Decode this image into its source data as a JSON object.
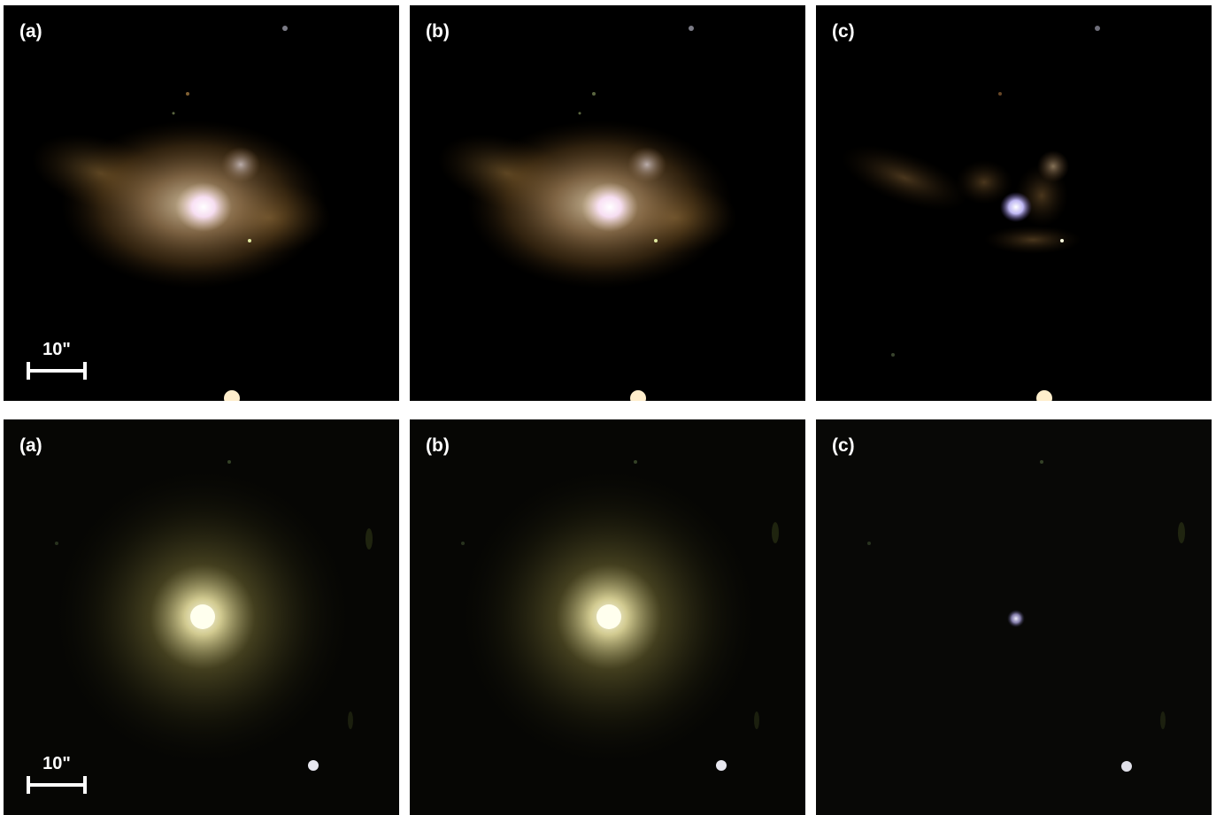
{
  "rows": [
    {
      "panels": [
        {
          "label": "(a)",
          "kind": "galaxy-spiral",
          "show_scalebar": true
        },
        {
          "label": "(b)",
          "kind": "galaxy-spiral",
          "show_scalebar": false
        },
        {
          "label": "(c)",
          "kind": "residual-spiral",
          "show_scalebar": false
        }
      ]
    },
    {
      "panels": [
        {
          "label": "(a)",
          "kind": "galaxy-elliptical",
          "show_scalebar": true
        },
        {
          "label": "(b)",
          "kind": "galaxy-elliptical",
          "show_scalebar": false
        },
        {
          "label": "(c)",
          "kind": "residual-elliptical",
          "show_scalebar": false
        }
      ]
    }
  ],
  "scalebar": {
    "label": "10\""
  },
  "colors": {
    "background": "#000000",
    "spiral_halo": "#a08055",
    "spiral_core": "#ffe8ff",
    "elliptical_halo": "#6b6430",
    "elliptical_core": "#ffffe8",
    "residual_core": "#c8c0ff"
  }
}
